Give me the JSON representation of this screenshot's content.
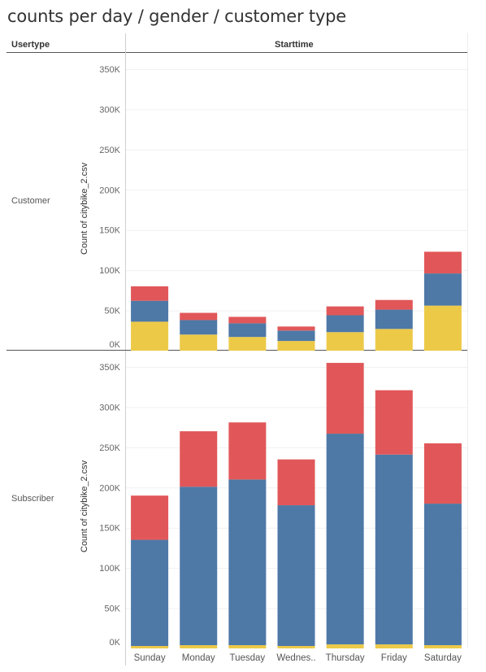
{
  "title": "counts per day / gender / customer type",
  "header": {
    "row_label": "Usertype",
    "column_label": "Starttime"
  },
  "colors": {
    "gender_0": "#EDC948",
    "gender_1": "#4E79A7",
    "gender_2": "#E15759"
  },
  "chart_data": {
    "type": "bar",
    "stacked": true,
    "categories": [
      "Sunday",
      "Monday",
      "Tuesday",
      "Wednes..",
      "Thursday",
      "Friday",
      "Saturday"
    ],
    "ylabel": "Count of citybike_2.csv",
    "ylim": [
      0,
      360000
    ],
    "yticks": [
      "0K",
      "50K",
      "100K",
      "150K",
      "200K",
      "250K",
      "300K",
      "350K"
    ],
    "grid": true,
    "panels": [
      {
        "usertype": "Customer",
        "series": [
          {
            "values": [
              36000,
              20000,
              17000,
              12000,
              23000,
              27000,
              56000
            ]
          },
          {
            "values": [
              26000,
              18000,
              17000,
              13000,
              21000,
              24000,
              40000
            ]
          },
          {
            "values": [
              18000,
              9000,
              8000,
              5000,
              11000,
              12000,
              27000
            ]
          }
        ]
      },
      {
        "usertype": "Subscriber",
        "series": [
          {
            "values": [
              3000,
              4000,
              4000,
              3000,
              5000,
              5000,
              4000
            ]
          },
          {
            "values": [
              132000,
              197000,
              206000,
              175000,
              262000,
              236000,
              176000
            ]
          },
          {
            "values": [
              55000,
              69000,
              71000,
              57000,
              88000,
              80000,
              75000
            ]
          }
        ]
      }
    ]
  }
}
